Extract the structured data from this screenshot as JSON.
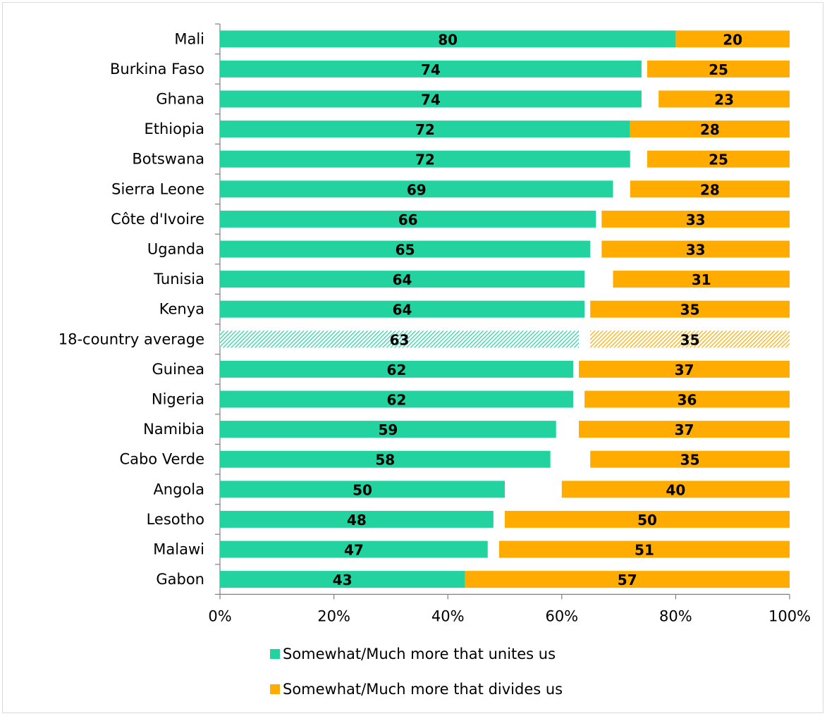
{
  "chart_data": {
    "type": "bar",
    "orientation": "horizontal",
    "stacked": true,
    "categories": [
      "Mali",
      "Burkina Faso",
      "Ghana",
      "Ethiopia",
      "Botswana",
      "Sierra Leone",
      "Côte d'Ivoire",
      "Uganda",
      "Tunisia",
      "Kenya",
      "18-country average",
      "Guinea",
      "Nigeria",
      "Namibia",
      "Cabo Verde",
      "Angola",
      "Lesotho",
      "Malawi",
      "Gabon"
    ],
    "series": [
      {
        "name": "Somewhat/Much more that unites us",
        "color": "#22d3a0",
        "values": [
          80,
          74,
          74,
          72,
          72,
          69,
          66,
          65,
          64,
          64,
          63,
          62,
          62,
          59,
          58,
          50,
          48,
          47,
          43
        ]
      },
      {
        "name": "Somewhat/Much more that divides us",
        "color": "#ffab00",
        "values": [
          20,
          25,
          23,
          28,
          25,
          28,
          33,
          33,
          31,
          35,
          35,
          37,
          36,
          37,
          35,
          40,
          50,
          51,
          57
        ]
      }
    ],
    "highlight_category": "18-country average",
    "highlight_style": "hatched",
    "xlim": [
      0,
      100
    ],
    "x_ticks": [
      "0%",
      "20%",
      "40%",
      "60%",
      "80%",
      "100%"
    ],
    "legend_position": "bottom",
    "title": "",
    "xlabel": "",
    "ylabel": ""
  }
}
